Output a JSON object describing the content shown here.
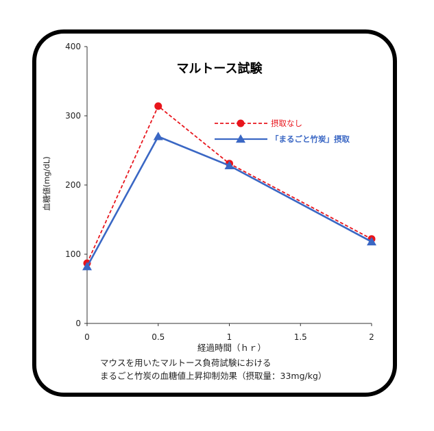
{
  "chart_data": {
    "type": "line",
    "title": "マルトース試験",
    "xlabel": "経過時間（ｈｒ）",
    "ylabel": "血糖値(mg/dL)",
    "x": [
      0,
      0.5,
      1,
      1.5,
      2
    ],
    "x_ticks": [
      "0",
      "0.5",
      "1",
      "1.5",
      "2"
    ],
    "y_ticks": [
      "0",
      "100",
      "200",
      "300",
      "400"
    ],
    "xlim": [
      0,
      2
    ],
    "ylim": [
      0,
      400
    ],
    "grid": false,
    "legend_position": "top-right",
    "series": [
      {
        "name": "摂取なし",
        "x": [
          0,
          0.5,
          1,
          2
        ],
        "values": [
          87,
          314,
          231,
          122
        ],
        "color": "#e8151c",
        "line_style": "dashed",
        "marker": "circle"
      },
      {
        "name": "「まるごと竹炭」摂取",
        "x": [
          0,
          0.5,
          1,
          2
        ],
        "values": [
          82,
          270,
          228,
          118
        ],
        "color": "#3a67c4",
        "line_style": "solid",
        "marker": "triangle"
      }
    ]
  },
  "caption": {
    "line1": "マウスを用いたマルトース負荷試験における",
    "line2": "まるごと竹炭の血糖値上昇抑制効果（摂取量：33mg/kg）"
  }
}
